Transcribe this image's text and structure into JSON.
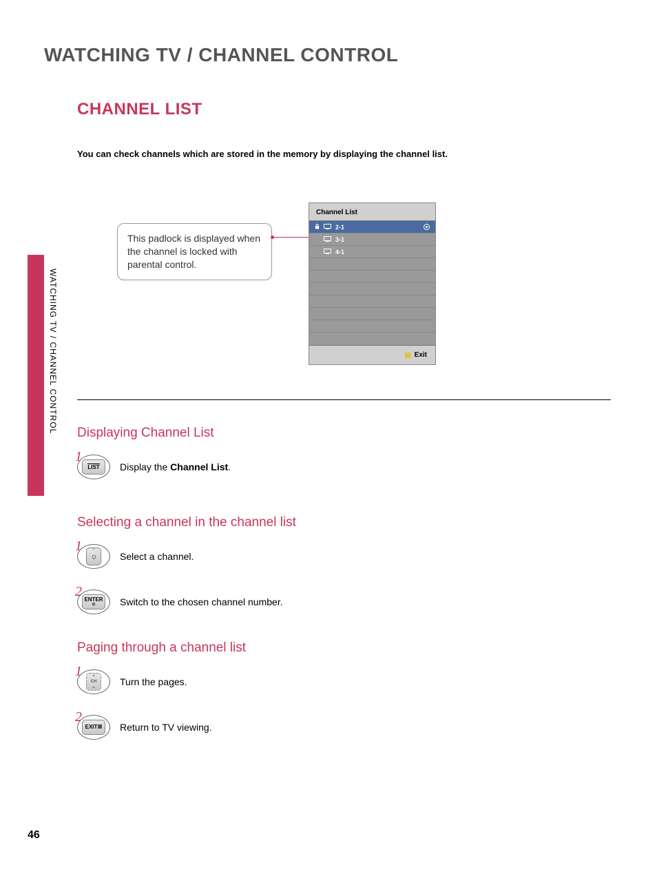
{
  "page": {
    "number": "46",
    "title": "WATCHING TV / CHANNEL CONTROL",
    "side_tab": "WATCHING TV / CHANNEL CONTROL",
    "tab_color": "#c8355c",
    "accent_color": "#c8355c"
  },
  "section": {
    "title": "CHANNEL LIST",
    "intro": "You can check channels which are stored in the memory by displaying the channel list.",
    "callout": "This padlock is displayed when the channel is locked with parental control."
  },
  "osd": {
    "header": "Channel List",
    "background": "#d0d0d0",
    "list_background": "#9a9a9a",
    "selected_background": "#4a6aa0",
    "rows": [
      {
        "label": "2-1",
        "lock": true,
        "tv": true,
        "selected": true,
        "target": true
      },
      {
        "label": "3-1",
        "lock": false,
        "tv": true,
        "selected": false,
        "target": false
      },
      {
        "label": "4-1",
        "lock": false,
        "tv": true,
        "selected": false,
        "target": false
      },
      {
        "label": "",
        "lock": false,
        "tv": false,
        "selected": false,
        "target": false
      },
      {
        "label": "",
        "lock": false,
        "tv": false,
        "selected": false,
        "target": false
      },
      {
        "label": "",
        "lock": false,
        "tv": false,
        "selected": false,
        "target": false
      },
      {
        "label": "",
        "lock": false,
        "tv": false,
        "selected": false,
        "target": false
      },
      {
        "label": "",
        "lock": false,
        "tv": false,
        "selected": false,
        "target": false
      },
      {
        "label": "",
        "lock": false,
        "tv": false,
        "selected": false,
        "target": false
      },
      {
        "label": "",
        "lock": false,
        "tv": false,
        "selected": false,
        "target": false
      }
    ],
    "footer": "Exit",
    "footer_marker_color": "#e0c040"
  },
  "subsections": [
    {
      "title": "Displaying Channel List",
      "steps": [
        {
          "num": "1",
          "btn_type": "list",
          "btn_label": "LIST",
          "text_prefix": "Display the ",
          "text_bold": "Channel List",
          "text_suffix": "."
        }
      ]
    },
    {
      "title": "Selecting a channel in the channel list",
      "steps": [
        {
          "num": "1",
          "btn_type": "nav",
          "btn_label": "",
          "text_prefix": "Select a channel.",
          "text_bold": "",
          "text_suffix": ""
        },
        {
          "num": "2",
          "btn_type": "enter",
          "btn_label": "ENTER",
          "text_prefix": "Switch to the chosen channel number.",
          "text_bold": "",
          "text_suffix": ""
        }
      ]
    },
    {
      "title": "Paging through a channel list",
      "steps": [
        {
          "num": "1",
          "btn_type": "ch",
          "btn_label": "CH",
          "text_prefix": "Turn the pages.",
          "text_bold": "",
          "text_suffix": ""
        },
        {
          "num": "2",
          "btn_type": "exit",
          "btn_label": "EXIT",
          "text_prefix": "Return to TV viewing.",
          "text_bold": "",
          "text_suffix": ""
        }
      ]
    }
  ]
}
